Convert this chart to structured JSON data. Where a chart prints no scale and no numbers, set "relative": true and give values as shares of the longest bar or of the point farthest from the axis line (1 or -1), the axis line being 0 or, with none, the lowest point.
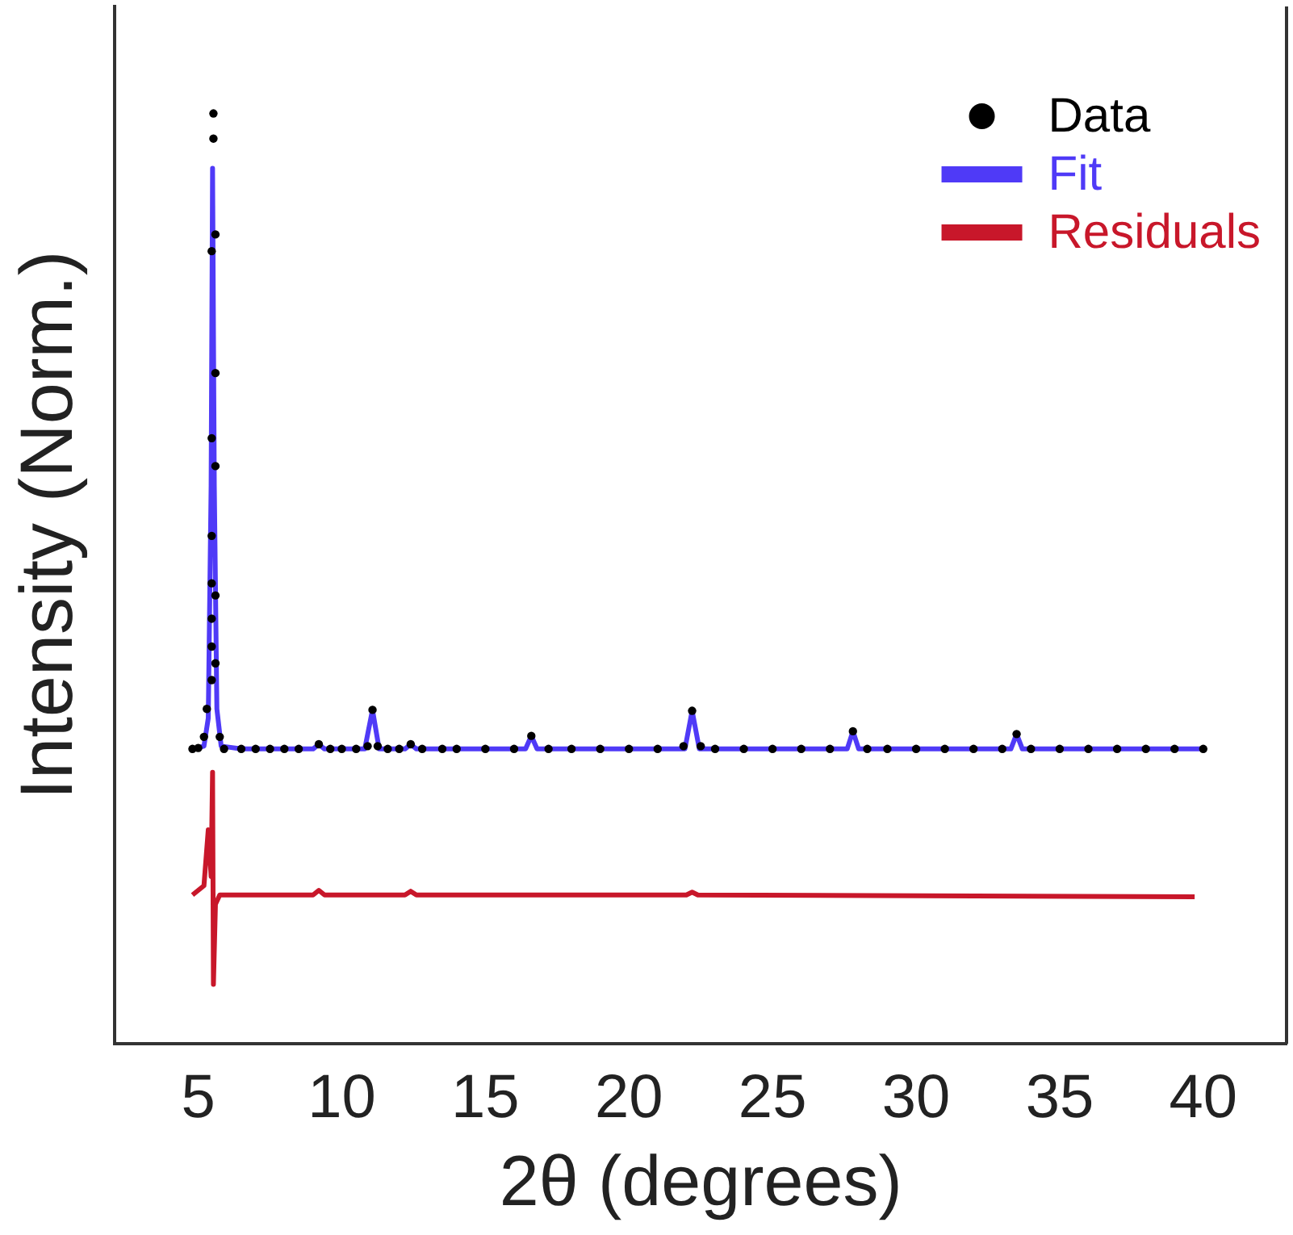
{
  "chart_data": {
    "type": "line",
    "relative": true,
    "xlabel": "2θ (degrees)",
    "ylabel": "Intensity (Norm.)",
    "xlim": [
      2.1,
      42.9
    ],
    "xticks": [
      5,
      10,
      15,
      20,
      25,
      30,
      35,
      40
    ],
    "grid": false,
    "legend": "top right",
    "tick_labels": "x",
    "series": [
      {
        "name": "Data",
        "type": "scatter",
        "marker": "circle",
        "color": "#000000",
        "x": [
          4.8,
          5.0,
          5.2,
          5.3,
          5.47,
          5.47,
          5.47,
          5.47,
          5.47,
          5.47,
          5.47,
          5.53,
          5.53,
          5.6,
          5.6,
          5.6,
          5.6,
          5.6,
          5.75,
          5.9,
          6.5,
          7,
          7.5,
          8,
          8.5,
          9.2,
          9.6,
          10,
          10.5,
          10.9,
          11.07,
          11.25,
          11.6,
          12,
          12.4,
          12.8,
          13.5,
          14,
          15,
          16,
          16.6,
          17.2,
          18,
          19,
          20,
          21,
          21.9,
          22.2,
          22.5,
          23,
          24,
          25,
          26,
          27,
          27.8,
          28.3,
          29,
          30,
          31,
          32,
          33,
          33.5,
          34,
          35,
          36,
          37,
          38,
          39,
          40
        ],
        "values": [
          0.317,
          0.318,
          0.33,
          0.36,
          0.391,
          0.427,
          0.457,
          0.495,
          0.546,
          0.651,
          0.852,
          1.0,
          0.973,
          0.409,
          0.482,
          0.621,
          0.721,
          0.87,
          0.33,
          0.317,
          0.317,
          0.317,
          0.317,
          0.317,
          0.317,
          0.322,
          0.317,
          0.317,
          0.317,
          0.32,
          0.359,
          0.32,
          0.317,
          0.317,
          0.322,
          0.317,
          0.317,
          0.317,
          0.317,
          0.317,
          0.331,
          0.317,
          0.317,
          0.317,
          0.317,
          0.317,
          0.32,
          0.358,
          0.32,
          0.317,
          0.317,
          0.317,
          0.317,
          0.317,
          0.336,
          0.317,
          0.317,
          0.317,
          0.317,
          0.317,
          0.317,
          0.333,
          0.317,
          0.317,
          0.317,
          0.317,
          0.317,
          0.317,
          0.317
        ]
      },
      {
        "name": "Fit",
        "type": "line",
        "marker": "none",
        "color": "#4f3af7",
        "x": [
          4.8,
          5.2,
          5.35,
          5.45,
          5.5,
          5.56,
          5.65,
          5.8,
          6.5,
          9.0,
          9.2,
          9.4,
          10.8,
          11.07,
          11.3,
          12.2,
          12.4,
          12.6,
          16.4,
          16.6,
          16.8,
          21.95,
          22.2,
          22.45,
          27.6,
          27.8,
          28.0,
          33.3,
          33.5,
          33.7,
          40
        ],
        "values": [
          0.317,
          0.32,
          0.35,
          0.6,
          0.941,
          0.6,
          0.36,
          0.32,
          0.317,
          0.317,
          0.322,
          0.317,
          0.317,
          0.359,
          0.317,
          0.317,
          0.322,
          0.317,
          0.317,
          0.331,
          0.317,
          0.317,
          0.358,
          0.317,
          0.317,
          0.336,
          0.317,
          0.317,
          0.333,
          0.317,
          0.317
        ]
      },
      {
        "name": "Residuals",
        "type": "line",
        "marker": "none",
        "color": "#c8172a",
        "x": [
          4.8,
          5.2,
          5.35,
          5.45,
          5.5,
          5.53,
          5.6,
          5.75,
          9.0,
          9.2,
          9.4,
          12.2,
          12.4,
          12.6,
          22.0,
          22.2,
          22.4,
          39.7
        ],
        "values": [
          0.16,
          0.17,
          0.23,
          0.18,
          0.292,
          0.064,
          0.15,
          0.16,
          0.16,
          0.165,
          0.16,
          0.16,
          0.164,
          0.16,
          0.16,
          0.163,
          0.16,
          0.158
        ]
      }
    ]
  }
}
